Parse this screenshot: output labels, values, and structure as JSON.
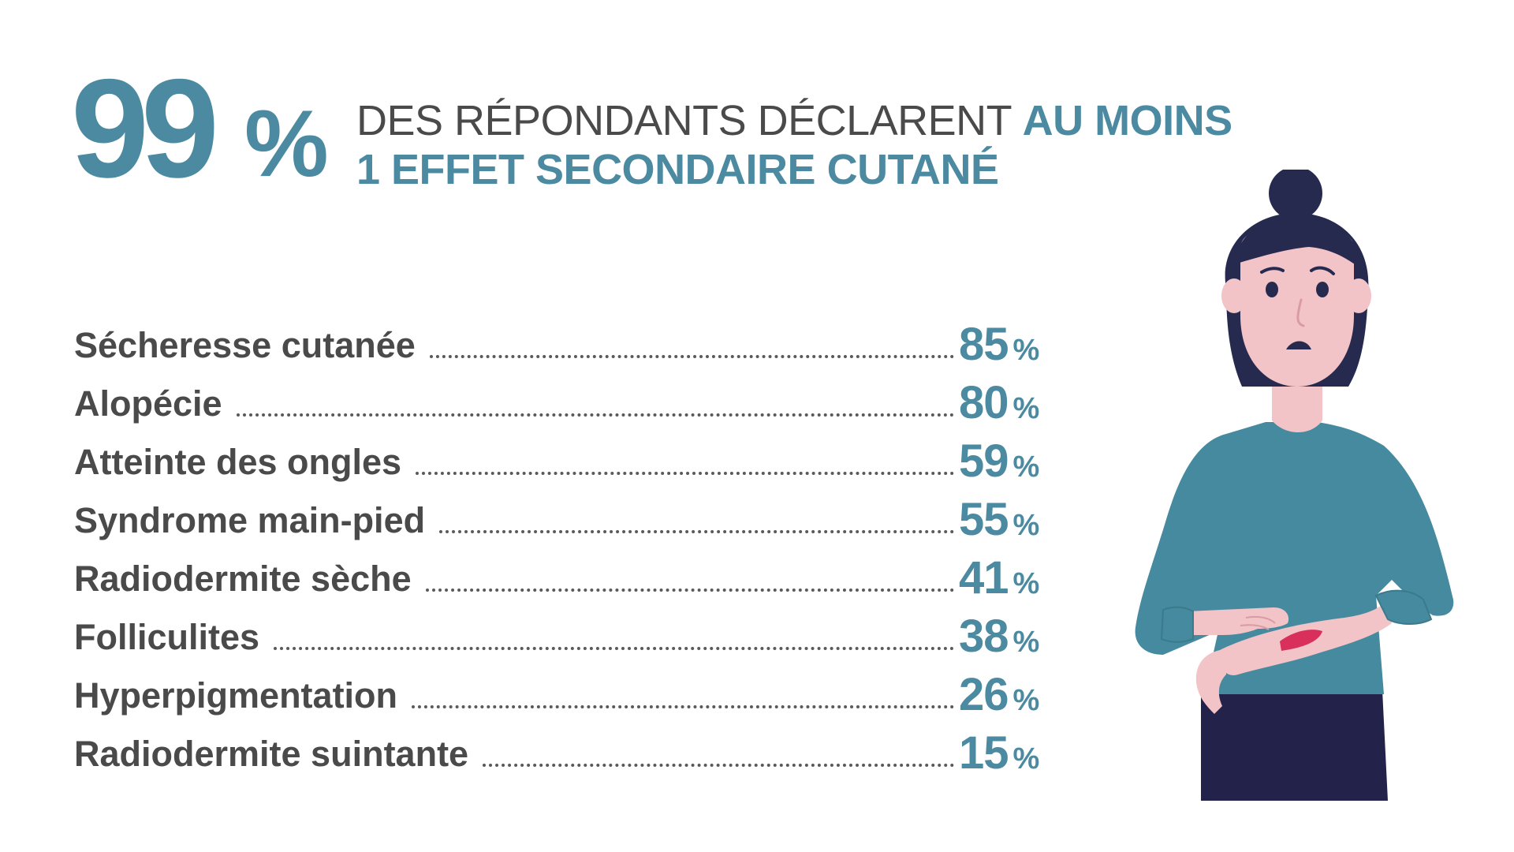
{
  "headline": {
    "stat_number": "99",
    "stat_unit": "%",
    "text_plain": "DES RÉPONDANTS DÉCLARENT ",
    "text_bold_1": "AU MOINS",
    "text_bold_2": "1 EFFET SECONDAIRE CUTANÉ"
  },
  "effects": [
    {
      "label": "Sécheresse cutanée",
      "value": "85",
      "unit": "%"
    },
    {
      "label": "Alopécie",
      "value": "80",
      "unit": "%"
    },
    {
      "label": "Atteinte des ongles",
      "value": "59",
      "unit": "%"
    },
    {
      "label": "Syndrome main-pied",
      "value": "55",
      "unit": "%"
    },
    {
      "label": "Radiodermite sèche",
      "value": "41",
      "unit": "%"
    },
    {
      "label": "Folliculites",
      "value": "38",
      "unit": "%"
    },
    {
      "label": "Hyperpigmentation",
      "value": "26",
      "unit": "%"
    },
    {
      "label": "Radiodermite suintante",
      "value": "15",
      "unit": "%"
    }
  ],
  "colors": {
    "accent": "#4b8aa0",
    "text_dark": "#4a4a4a",
    "hair": "#262a4f",
    "skin": "#f2c4c8",
    "sweater": "#458a9e",
    "pants": "#23224a",
    "rash": "#d8305a"
  },
  "illustration": {
    "icon": "woman-checking-skin-rash-icon"
  }
}
